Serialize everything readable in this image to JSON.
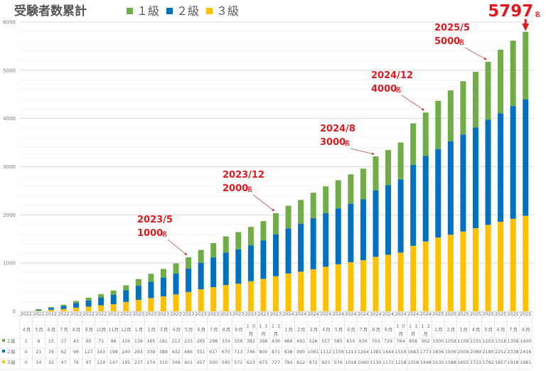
{
  "chart_data": {
    "type": "bar",
    "stacked": true,
    "title": "受験者数累計",
    "xlabel": "",
    "ylabel": "",
    "ylim": [
      0,
      6000
    ],
    "yticks": [
      0,
      1000,
      2000,
      3000,
      4000,
      5000,
      6000
    ],
    "grid": true,
    "legend_position": "top",
    "categories_year": [
      "2022",
      "2022",
      "2022",
      "2022",
      "2022",
      "2022",
      "2022",
      "2022",
      "2022",
      "2023",
      "2023",
      "2023",
      "2023",
      "2023",
      "2023",
      "2023",
      "2023",
      "2023",
      "2023",
      "2023",
      "2023",
      "2024",
      "2024",
      "2024",
      "2024",
      "2024",
      "2024",
      "2024",
      "2024",
      "2024",
      "2024",
      "2024",
      "2024",
      "2025",
      "2025",
      "2025",
      "2025",
      "2025",
      "2025",
      "2025",
      "2025"
    ],
    "categories_month": [
      "４月",
      "５月",
      "６月",
      "７月",
      "８月",
      "９月",
      "10月",
      "11月",
      "12月",
      "１月",
      "２月",
      "３月",
      "４月",
      "５月",
      "６月",
      "７月",
      "８月",
      "９月",
      "１０月",
      "１１月",
      "１２月",
      "１月",
      "２月",
      "３月",
      "４月",
      "５月",
      "６月",
      "７月",
      "８月",
      "９月",
      "１０月",
      "１１月",
      "１２月",
      "１月",
      "２月",
      "３月",
      "４月",
      "５月",
      "６月",
      "７月",
      "８月"
    ],
    "series": [
      {
        "name": "1級",
        "label": "■１級",
        "color": "#70ad47",
        "values": [
          1,
          8,
          15,
          27,
          43,
          60,
          71,
          86,
          104,
          139,
          165,
          181,
          213,
          233,
          265,
          298,
          334,
          358,
          382,
          398,
          436,
          466,
          493,
          526,
          557,
          585,
          610,
          636,
          703,
          729,
          764,
          858,
          902,
          1000,
          1058,
          1109,
          1155,
          1203,
          1318,
          1358,
          1400
        ]
      },
      {
        "name": "2級",
        "label": "■２級",
        "color": "#0070c0",
        "values": [
          0,
          21,
          39,
          62,
          96,
          127,
          163,
          198,
          240,
          293,
          339,
          388,
          432,
          486,
          551,
          617,
          675,
          713,
          746,
          800,
          871,
          938,
          995,
          1061,
          1112,
          1159,
          1213,
          1264,
          1381,
          1444,
          1519,
          1683,
          1773,
          1836,
          1936,
          2009,
          2089,
          2180,
          2252,
          2338,
          2416
        ]
      },
      {
        "name": "3級",
        "label": "■３級",
        "color": "#ffc000",
        "values": [
          0,
          14,
          32,
          47,
          76,
          97,
          124,
          147,
          195,
          237,
          274,
          310,
          349,
          401,
          457,
          500,
          545,
          572,
          623,
          673,
          727,
          784,
          822,
          872,
          923,
          976,
          1018,
          1060,
          1130,
          1172,
          1218,
          1358,
          1448,
          1530,
          1588,
          1655,
          1723,
          1792,
          1857,
          1918,
          1981
        ]
      }
    ],
    "stack_order_bottom_to_top": [
      "3級",
      "2級",
      "1級"
    ],
    "legend": [
      "１級",
      "２級",
      "３級"
    ],
    "annotations": [
      {
        "date": "2023/5",
        "count": "1000",
        "unit": "名",
        "category_index": 13
      },
      {
        "date": "2023/12",
        "count": "2000",
        "unit": "名",
        "category_index": 20
      },
      {
        "date": "2024/8",
        "count": "3000",
        "unit": "名",
        "category_index": 28
      },
      {
        "date": "2024/12",
        "count": "4000",
        "unit": "名",
        "category_index": 32
      },
      {
        "date": "2025/5",
        "count": "5000",
        "unit": "名",
        "category_index": 37
      }
    ],
    "total_label": {
      "value": "5797",
      "unit": "名",
      "category_index": 40
    }
  }
}
